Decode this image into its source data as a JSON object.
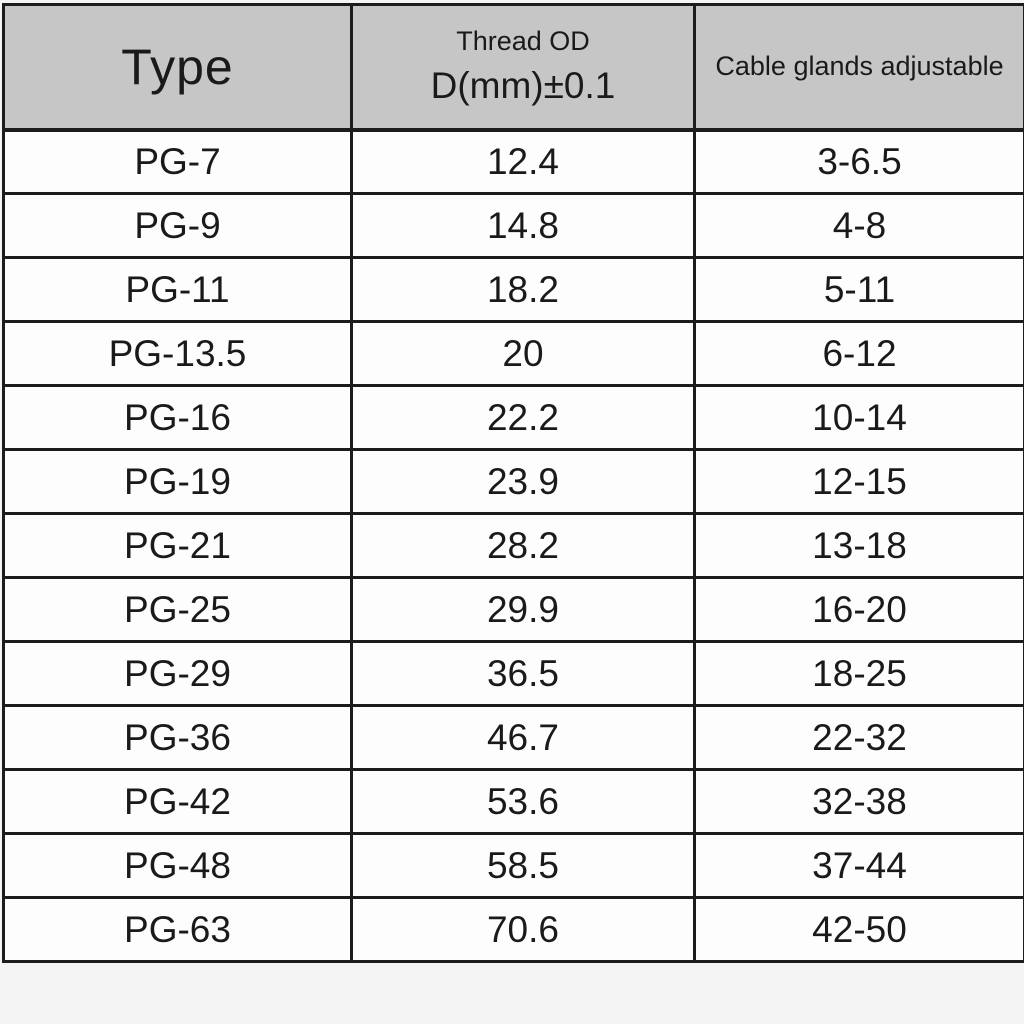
{
  "table": {
    "header": {
      "type": "Type",
      "thread_od_line1": "Thread OD",
      "thread_od_line2": "D(mm)±0.1",
      "adjustable": "Cable glands adjustable"
    },
    "rows": [
      {
        "type": "PG-7",
        "thread_od": "12.4",
        "range": "3-6.5"
      },
      {
        "type": "PG-9",
        "thread_od": "14.8",
        "range": "4-8"
      },
      {
        "type": "PG-11",
        "thread_od": "18.2",
        "range": "5-11"
      },
      {
        "type": "PG-13.5",
        "thread_od": "20",
        "range": "6-12"
      },
      {
        "type": "PG-16",
        "thread_od": "22.2",
        "range": "10-14"
      },
      {
        "type": "PG-19",
        "thread_od": "23.9",
        "range": "12-15"
      },
      {
        "type": "PG-21",
        "thread_od": "28.2",
        "range": "13-18"
      },
      {
        "type": "PG-25",
        "thread_od": "29.9",
        "range": "16-20"
      },
      {
        "type": "PG-29",
        "thread_od": "36.5",
        "range": "18-25"
      },
      {
        "type": "PG-36",
        "thread_od": "46.7",
        "range": "22-32"
      },
      {
        "type": "PG-42",
        "thread_od": "53.6",
        "range": "32-38"
      },
      {
        "type": "PG-48",
        "thread_od": "58.5",
        "range": "37-44"
      },
      {
        "type": "PG-63",
        "thread_od": "70.6",
        "range": "42-50"
      }
    ]
  },
  "colors": {
    "header_bg": "#c6c6c6",
    "row_bg": "#fdfdfd",
    "border": "#1c1c1c",
    "text": "#1a1a1a",
    "page_bg": "#f4f4f4"
  }
}
